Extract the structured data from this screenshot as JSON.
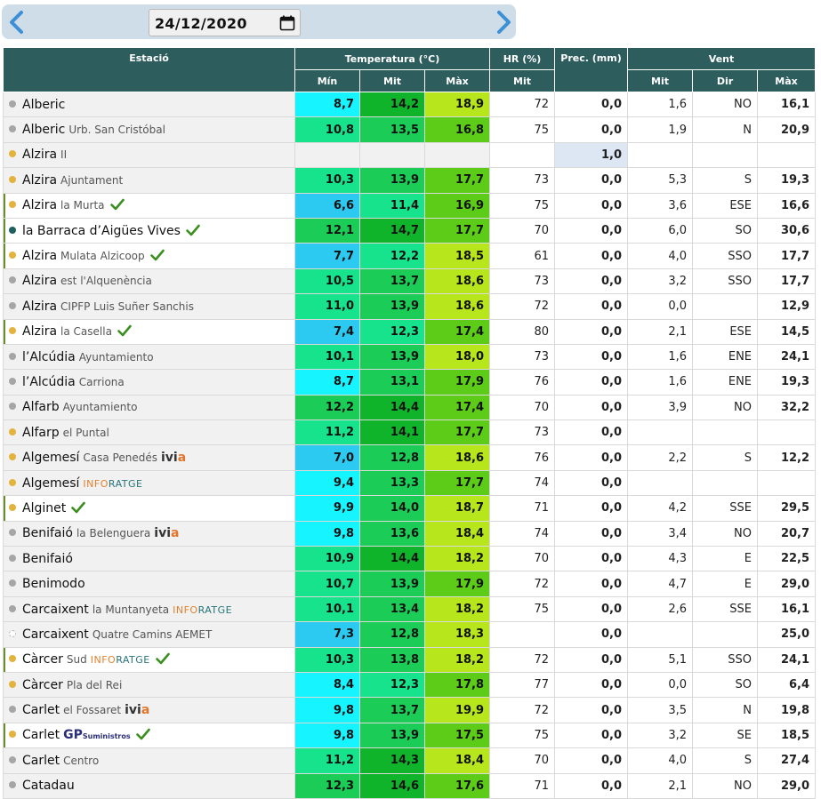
{
  "date": "24/12/2020",
  "colors": {
    "header_bg": "#2e5d5e",
    "cyan": "#16f5ff",
    "sky": "#2ccaf0",
    "teal": "#17e38d",
    "green": "#1bcd56",
    "dark_green": "#0fb42b",
    "mid_green": "#5ccc18",
    "yellow_green": "#b6e61b",
    "check": "#3a8f1f"
  },
  "headers": {
    "station": "Estació",
    "temp": "Temperatura (°C)",
    "hr": "HR (%)",
    "prec": "Prec. (mm)",
    "wind": "Vent",
    "min": "Mín",
    "avg": "Mit",
    "max": "Màx",
    "hr_avg": "Mit",
    "wind_avg": "Mit",
    "wind_dir": "Dir",
    "wind_max": "Màx"
  },
  "rows": [
    {
      "name": "Alberic",
      "sub": "",
      "dot": "gray",
      "hl": false,
      "check": false,
      "logo": "",
      "tmin": "8,7",
      "tavg": "14,2",
      "tmax": "18,9",
      "cmin": "cyan",
      "cavg": "dark_green",
      "cmax": "yellow_green",
      "hr": "72",
      "prec": "0,0",
      "wavg": "1,6",
      "wdir": "NO",
      "wmax": "16,1"
    },
    {
      "name": "Alberic",
      "sub": "Urb. San Cristóbal",
      "dot": "gray",
      "hl": false,
      "check": false,
      "logo": "",
      "tmin": "10,8",
      "tavg": "13,5",
      "tmax": "16,8",
      "cmin": "teal",
      "cavg": "green",
      "cmax": "mid_green",
      "hr": "75",
      "prec": "0,0",
      "wavg": "1,9",
      "wdir": "N",
      "wmax": "20,9"
    },
    {
      "name": "Alzira",
      "sub": "II",
      "dot": "yellow",
      "hl": false,
      "check": false,
      "logo": "",
      "tmin": "",
      "tavg": "",
      "tmax": "",
      "cmin": "",
      "cavg": "",
      "cmax": "",
      "hr": "",
      "prec": "1,0",
      "wavg": "",
      "wdir": "",
      "wmax": "",
      "precblue": true
    },
    {
      "name": "Alzira",
      "sub": "Ajuntament",
      "dot": "yellow",
      "hl": false,
      "check": false,
      "logo": "",
      "tmin": "10,3",
      "tavg": "13,9",
      "tmax": "17,7",
      "cmin": "teal",
      "cavg": "green",
      "cmax": "mid_green",
      "hr": "73",
      "prec": "0,0",
      "wavg": "5,3",
      "wdir": "S",
      "wmax": "19,3"
    },
    {
      "name": "Alzira",
      "sub": "la Murta",
      "dot": "yellow",
      "hl": true,
      "check": true,
      "logo": "",
      "tmin": "6,6",
      "tavg": "11,4",
      "tmax": "16,9",
      "cmin": "sky",
      "cavg": "teal",
      "cmax": "mid_green",
      "hr": "75",
      "prec": "0,0",
      "wavg": "3,6",
      "wdir": "ESE",
      "wmax": "16,6"
    },
    {
      "name": "la Barraca d’Aigües Vives",
      "sub": "",
      "dot": "teal",
      "hl": true,
      "check": true,
      "logo": "",
      "tmin": "12,1",
      "tavg": "14,7",
      "tmax": "17,7",
      "cmin": "green",
      "cavg": "dark_green",
      "cmax": "mid_green",
      "hr": "70",
      "prec": "0,0",
      "wavg": "6,0",
      "wdir": "SO",
      "wmax": "30,6"
    },
    {
      "name": "Alzira",
      "sub": "Mulata Alzicoop",
      "dot": "yellow",
      "hl": true,
      "check": true,
      "logo": "",
      "tmin": "7,7",
      "tavg": "12,2",
      "tmax": "18,5",
      "cmin": "sky",
      "cavg": "teal",
      "cmax": "yellow_green",
      "hr": "61",
      "prec": "0,0",
      "wavg": "4,0",
      "wdir": "SSO",
      "wmax": "17,7"
    },
    {
      "name": "Alzira",
      "sub": "est l'Alquenència",
      "dot": "gray",
      "hl": false,
      "check": false,
      "logo": "",
      "tmin": "10,5",
      "tavg": "13,7",
      "tmax": "18,6",
      "cmin": "teal",
      "cavg": "green",
      "cmax": "yellow_green",
      "hr": "73",
      "prec": "0,0",
      "wavg": "3,2",
      "wdir": "SSO",
      "wmax": "17,7"
    },
    {
      "name": "Alzira",
      "sub": "CIPFP Luis Suñer Sanchis",
      "dot": "gray",
      "hl": false,
      "check": false,
      "logo": "",
      "tmin": "11,0",
      "tavg": "13,9",
      "tmax": "18,6",
      "cmin": "teal",
      "cavg": "green",
      "cmax": "yellow_green",
      "hr": "72",
      "prec": "0,0",
      "wavg": "0,0",
      "wdir": "",
      "wmax": "12,9"
    },
    {
      "name": "Alzira",
      "sub": "la Casella",
      "dot": "yellow",
      "hl": true,
      "check": true,
      "logo": "",
      "tmin": "7,4",
      "tavg": "12,3",
      "tmax": "17,4",
      "cmin": "sky",
      "cavg": "teal",
      "cmax": "mid_green",
      "hr": "80",
      "prec": "0,0",
      "wavg": "2,1",
      "wdir": "ESE",
      "wmax": "14,5"
    },
    {
      "name": "l’Alcúdia",
      "sub": "Ayuntamiento",
      "dot": "gray",
      "hl": false,
      "check": false,
      "logo": "",
      "tmin": "10,1",
      "tavg": "13,9",
      "tmax": "18,0",
      "cmin": "teal",
      "cavg": "green",
      "cmax": "yellow_green",
      "hr": "73",
      "prec": "0,0",
      "wavg": "1,6",
      "wdir": "ENE",
      "wmax": "24,1"
    },
    {
      "name": "l’Alcúdia",
      "sub": "Carriona",
      "dot": "gray",
      "hl": false,
      "check": false,
      "logo": "",
      "tmin": "8,7",
      "tavg": "13,1",
      "tmax": "17,9",
      "cmin": "cyan",
      "cavg": "green",
      "cmax": "mid_green",
      "hr": "76",
      "prec": "0,0",
      "wavg": "1,6",
      "wdir": "ENE",
      "wmax": "19,3"
    },
    {
      "name": "Alfarb",
      "sub": "Ayuntamiento",
      "dot": "gray",
      "hl": false,
      "check": false,
      "logo": "",
      "tmin": "12,2",
      "tavg": "14,4",
      "tmax": "17,4",
      "cmin": "green",
      "cavg": "dark_green",
      "cmax": "mid_green",
      "hr": "70",
      "prec": "0,0",
      "wavg": "3,9",
      "wdir": "NO",
      "wmax": "32,2"
    },
    {
      "name": "Alfarp",
      "sub": "el Puntal",
      "dot": "yellow",
      "hl": false,
      "check": false,
      "logo": "",
      "tmin": "11,2",
      "tavg": "14,1",
      "tmax": "17,7",
      "cmin": "teal",
      "cavg": "dark_green",
      "cmax": "mid_green",
      "hr": "73",
      "prec": "0,0",
      "wavg": "",
      "wdir": "",
      "wmax": ""
    },
    {
      "name": "Algemesí",
      "sub": "Casa Penedés",
      "dot": "yellow",
      "hl": false,
      "check": false,
      "logo": "ivia",
      "tmin": "7,0",
      "tavg": "12,8",
      "tmax": "18,6",
      "cmin": "sky",
      "cavg": "green",
      "cmax": "yellow_green",
      "hr": "76",
      "prec": "0,0",
      "wavg": "2,2",
      "wdir": "S",
      "wmax": "12,2"
    },
    {
      "name": "Algemesí",
      "sub": "",
      "dot": "yellow",
      "hl": false,
      "check": false,
      "logo": "inforatge",
      "tmin": "9,4",
      "tavg": "13,3",
      "tmax": "17,7",
      "cmin": "cyan",
      "cavg": "green",
      "cmax": "mid_green",
      "hr": "74",
      "prec": "0,0",
      "wavg": "",
      "wdir": "",
      "wmax": ""
    },
    {
      "name": "Alginet",
      "sub": "",
      "dot": "yellow",
      "hl": true,
      "check": true,
      "logo": "",
      "tmin": "9,9",
      "tavg": "14,0",
      "tmax": "18,7",
      "cmin": "cyan",
      "cavg": "green",
      "cmax": "yellow_green",
      "hr": "71",
      "prec": "0,0",
      "wavg": "4,2",
      "wdir": "SSE",
      "wmax": "29,5"
    },
    {
      "name": "Benifaió",
      "sub": "la Belenguera",
      "dot": "gray",
      "hl": false,
      "check": false,
      "logo": "ivia",
      "tmin": "9,8",
      "tavg": "13,6",
      "tmax": "18,4",
      "cmin": "cyan",
      "cavg": "green",
      "cmax": "yellow_green",
      "hr": "74",
      "prec": "0,0",
      "wavg": "3,4",
      "wdir": "NO",
      "wmax": "20,7"
    },
    {
      "name": "Benifaió",
      "sub": "",
      "dot": "gray",
      "hl": false,
      "check": false,
      "logo": "",
      "tmin": "10,9",
      "tavg": "14,4",
      "tmax": "18,2",
      "cmin": "teal",
      "cavg": "dark_green",
      "cmax": "yellow_green",
      "hr": "70",
      "prec": "0,0",
      "wavg": "4,3",
      "wdir": "E",
      "wmax": "22,5"
    },
    {
      "name": "Benimodo",
      "sub": "",
      "dot": "gray",
      "hl": false,
      "check": false,
      "logo": "",
      "tmin": "10,7",
      "tavg": "13,9",
      "tmax": "17,9",
      "cmin": "teal",
      "cavg": "green",
      "cmax": "mid_green",
      "hr": "72",
      "prec": "0,0",
      "wavg": "4,7",
      "wdir": "E",
      "wmax": "29,0"
    },
    {
      "name": "Carcaixent",
      "sub": "la Muntanyeta",
      "dot": "gray",
      "hl": false,
      "check": false,
      "logo": "inforatge",
      "tmin": "10,1",
      "tavg": "13,4",
      "tmax": "18,2",
      "cmin": "teal",
      "cavg": "green",
      "cmax": "yellow_green",
      "hr": "75",
      "prec": "0,0",
      "wavg": "2,6",
      "wdir": "SSE",
      "wmax": "16,1"
    },
    {
      "name": "Carcaixent",
      "sub": "Quatre Camins AEMET",
      "dot": "dashed",
      "hl": false,
      "check": false,
      "logo": "",
      "tmin": "7,3",
      "tavg": "12,8",
      "tmax": "18,3",
      "cmin": "sky",
      "cavg": "green",
      "cmax": "yellow_green",
      "hr": "",
      "prec": "0,0",
      "wavg": "",
      "wdir": "",
      "wmax": "25,0"
    },
    {
      "name": "Càrcer",
      "sub": "Sud",
      "dot": "yellow",
      "hl": true,
      "check": true,
      "logo": "inforatge",
      "tmin": "10,3",
      "tavg": "13,8",
      "tmax": "18,2",
      "cmin": "teal",
      "cavg": "green",
      "cmax": "yellow_green",
      "hr": "72",
      "prec": "0,0",
      "wavg": "5,1",
      "wdir": "SSO",
      "wmax": "24,1"
    },
    {
      "name": "Càrcer",
      "sub": "Pla del Rei",
      "dot": "yellow",
      "hl": false,
      "check": false,
      "logo": "",
      "tmin": "8,4",
      "tavg": "12,3",
      "tmax": "17,8",
      "cmin": "cyan",
      "cavg": "teal",
      "cmax": "mid_green",
      "hr": "77",
      "prec": "0,0",
      "wavg": "0,0",
      "wdir": "SO",
      "wmax": "6,4"
    },
    {
      "name": "Carlet",
      "sub": "el Fossaret",
      "dot": "gray",
      "hl": false,
      "check": false,
      "logo": "ivia",
      "tmin": "9,8",
      "tavg": "13,7",
      "tmax": "19,9",
      "cmin": "cyan",
      "cavg": "green",
      "cmax": "yellow_green",
      "hr": "72",
      "prec": "0,0",
      "wavg": "3,5",
      "wdir": "N",
      "wmax": "19,8"
    },
    {
      "name": "Carlet",
      "sub": "",
      "dot": "yellow",
      "hl": true,
      "check": true,
      "logo": "gp",
      "tmin": "9,8",
      "tavg": "13,9",
      "tmax": "17,5",
      "cmin": "cyan",
      "cavg": "green",
      "cmax": "mid_green",
      "hr": "75",
      "prec": "0,0",
      "wavg": "3,2",
      "wdir": "SE",
      "wmax": "18,5"
    },
    {
      "name": "Carlet",
      "sub": "Centro",
      "dot": "gray",
      "hl": false,
      "check": false,
      "logo": "",
      "tmin": "11,2",
      "tavg": "14,3",
      "tmax": "18,4",
      "cmin": "teal",
      "cavg": "dark_green",
      "cmax": "yellow_green",
      "hr": "70",
      "prec": "0,0",
      "wavg": "4,0",
      "wdir": "S",
      "wmax": "27,4"
    },
    {
      "name": "Catadau",
      "sub": "",
      "dot": "gray",
      "hl": false,
      "check": false,
      "logo": "",
      "tmin": "12,3",
      "tavg": "14,6",
      "tmax": "17,6",
      "cmin": "green",
      "cavg": "dark_green",
      "cmax": "mid_green",
      "hr": "71",
      "prec": "0,0",
      "wavg": "2,1",
      "wdir": "NO",
      "wmax": "29,0"
    }
  ],
  "logos": {
    "ivia_a": "ivi",
    "ivia_b": "a",
    "inforatge_a": "INFO",
    "inforatge_b": "RATGE",
    "gp_a": "GP",
    "gp_b": "Suministros"
  }
}
